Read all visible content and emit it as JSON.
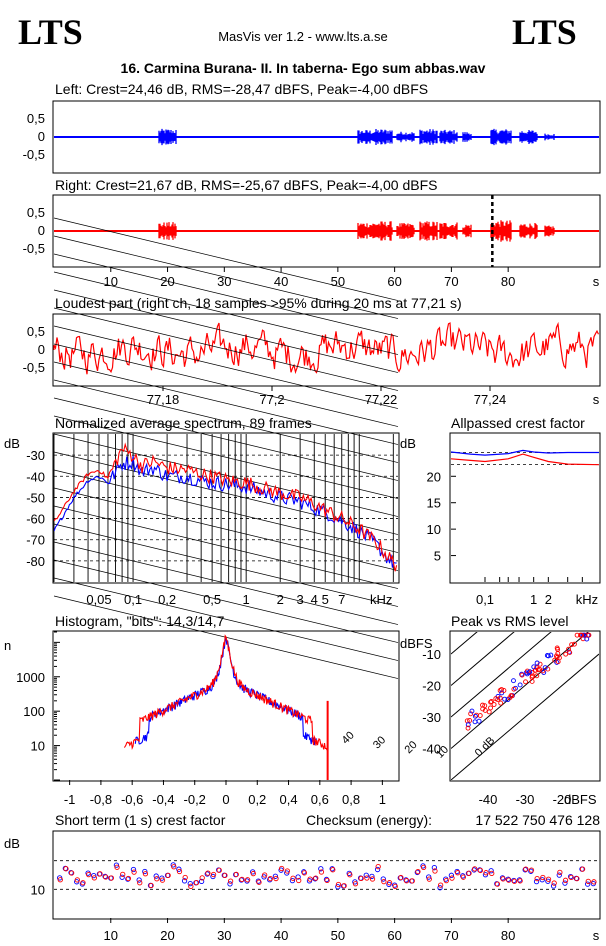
{
  "header": {
    "logo_left": "LTS",
    "logo_right": "LTS",
    "app_title": "MasVis ver 1.2 - www.lts.a.se",
    "file_title": "16. Carmina Burana- II. In taberna- Ego sum abbas.wav"
  },
  "colors": {
    "left": "#0000ff",
    "right": "#ff0000",
    "grid": "#000000"
  },
  "chart_data": [
    {
      "id": "left",
      "type": "line",
      "title": "Left: Crest=24,46 dB, RMS=-28,47 dBFS, Peak=-4,00 dBFS",
      "y_ticks": [
        "0,5",
        "0",
        "-0,5"
      ],
      "ylim": [
        -1,
        1
      ],
      "xlim": [
        0,
        96
      ],
      "bursts": [
        {
          "start": 18.5,
          "end": 21.5,
          "amp": 0.45
        },
        {
          "start": 53.5,
          "end": 56.5,
          "amp": 0.4
        },
        {
          "start": 56.8,
          "end": 59.5,
          "amp": 0.45
        },
        {
          "start": 60.5,
          "end": 63.5,
          "amp": 0.3
        },
        {
          "start": 64.5,
          "end": 67.5,
          "amp": 0.45
        },
        {
          "start": 68,
          "end": 71,
          "amp": 0.4
        },
        {
          "start": 72,
          "end": 73.5,
          "amp": 0.3
        },
        {
          "start": 77,
          "end": 80.5,
          "amp": 0.45
        },
        {
          "start": 82,
          "end": 85,
          "amp": 0.4
        },
        {
          "start": 86.5,
          "end": 88,
          "amp": 0.2
        }
      ]
    },
    {
      "id": "right",
      "type": "line",
      "title": "Right: Crest=21,67 dB, RMS=-25,67 dBFS, Peak=-4,00 dBFS",
      "y_ticks": [
        "0,5",
        "0",
        "-0,5"
      ],
      "ylim": [
        -1,
        1
      ],
      "xlim": [
        0,
        96
      ],
      "x_ticks": [
        "10",
        "20",
        "30",
        "40",
        "50",
        "60",
        "70",
        "80"
      ],
      "x_unit": "s",
      "marker_at": 77.21,
      "bursts": [
        {
          "start": 18.5,
          "end": 21.5,
          "amp": 0.5
        },
        {
          "start": 53.5,
          "end": 56.5,
          "amp": 0.5
        },
        {
          "start": 56.8,
          "end": 59.5,
          "amp": 0.55
        },
        {
          "start": 60.5,
          "end": 63.5,
          "amp": 0.45
        },
        {
          "start": 64.5,
          "end": 67.5,
          "amp": 0.55
        },
        {
          "start": 68,
          "end": 71,
          "amp": 0.5
        },
        {
          "start": 72,
          "end": 73.5,
          "amp": 0.4
        },
        {
          "start": 77,
          "end": 80.5,
          "amp": 0.6
        },
        {
          "start": 82,
          "end": 85,
          "amp": 0.45
        },
        {
          "start": 86.5,
          "end": 88,
          "amp": 0.3
        }
      ]
    },
    {
      "id": "loudest",
      "type": "line",
      "title": "Loudest part (right ch, 18 samples >95% during 20 ms at 77,21 s)",
      "y_ticks": [
        "0,5",
        "0",
        "-0,5"
      ],
      "ylim": [
        -1,
        1
      ],
      "xlim": [
        77.16,
        77.26
      ],
      "x_ticks": [
        "77,18",
        "77,2",
        "77,22",
        "77,24"
      ],
      "x_tick_values": [
        77.18,
        77.2,
        77.22,
        77.24
      ],
      "x_unit": "s"
    },
    {
      "id": "spectrum",
      "type": "line",
      "title": "Normalized average spectrum, 89 frames",
      "y_unit": "dB",
      "y_ticks": [
        "-30",
        "-40",
        "-50",
        "-60",
        "-70",
        "-80"
      ],
      "y_tick_values": [
        -30,
        -40,
        -50,
        -60,
        -70,
        -80
      ],
      "ylim": [
        -90,
        -20
      ],
      "x_ticks": [
        "0,05",
        "0,1",
        "0,2",
        "0,5",
        "1",
        "2",
        "3",
        "4",
        "5",
        "7"
      ],
      "x_tick_values": [
        0.05,
        0.1,
        0.2,
        0.5,
        1,
        2,
        3,
        4,
        5,
        7
      ],
      "x_unit": "kHz",
      "xlim_khz": [
        0.02,
        22
      ],
      "series": [
        {
          "id": "left",
          "points": [
            [
              0.02,
              -66
            ],
            [
              0.025,
              -57
            ],
            [
              0.03,
              -50
            ],
            [
              0.04,
              -42
            ],
            [
              0.05,
              -40
            ],
            [
              0.06,
              -43
            ],
            [
              0.08,
              -34
            ],
            [
              0.1,
              -33
            ],
            [
              0.12,
              -38
            ],
            [
              0.15,
              -36
            ],
            [
              0.2,
              -40
            ],
            [
              0.3,
              -40
            ],
            [
              0.4,
              -42
            ],
            [
              0.5,
              -43
            ],
            [
              0.7,
              -44
            ],
            [
              1,
              -45
            ],
            [
              1.5,
              -48
            ],
            [
              2,
              -50
            ],
            [
              3,
              -52
            ],
            [
              4,
              -55
            ],
            [
              5,
              -57
            ],
            [
              7,
              -61
            ],
            [
              10,
              -66
            ],
            [
              14,
              -72
            ],
            [
              18,
              -79
            ],
            [
              22,
              -83
            ]
          ]
        },
        {
          "id": "right",
          "points": [
            [
              0.02,
              -62
            ],
            [
              0.025,
              -54
            ],
            [
              0.03,
              -47
            ],
            [
              0.04,
              -39
            ],
            [
              0.05,
              -37
            ],
            [
              0.06,
              -41
            ],
            [
              0.08,
              -27
            ],
            [
              0.1,
              -30
            ],
            [
              0.12,
              -35
            ],
            [
              0.15,
              -33
            ],
            [
              0.2,
              -36
            ],
            [
              0.3,
              -37
            ],
            [
              0.4,
              -39
            ],
            [
              0.5,
              -40
            ],
            [
              0.7,
              -42
            ],
            [
              1,
              -43
            ],
            [
              1.5,
              -46
            ],
            [
              2,
              -48
            ],
            [
              3,
              -50
            ],
            [
              4,
              -53
            ],
            [
              5,
              -56
            ],
            [
              7,
              -60
            ],
            [
              10,
              -65
            ],
            [
              14,
              -71
            ],
            [
              18,
              -78
            ],
            [
              22,
              -83
            ]
          ]
        }
      ]
    },
    {
      "id": "allpass",
      "type": "line",
      "title": "Allpassed crest factor",
      "y_unit": "dB",
      "y_ticks": [
        "20",
        "15",
        "10",
        "5"
      ],
      "y_tick_values": [
        20,
        15,
        10,
        5
      ],
      "ylim": [
        0,
        28
      ],
      "x_ticks": [
        "0,1",
        "1",
        "2",
        "kHz"
      ],
      "x_tick_values": [
        0.1,
        1,
        2
      ],
      "xlim_khz": [
        0.02,
        22
      ],
      "reference_lines": [
        24.5,
        22.2
      ],
      "series": [
        {
          "id": "left",
          "points": [
            [
              0.02,
              24.6
            ],
            [
              0.05,
              24.2
            ],
            [
              0.1,
              24.0
            ],
            [
              0.3,
              24.3
            ],
            [
              0.6,
              24.9
            ],
            [
              1,
              24.6
            ],
            [
              2,
              24.4
            ],
            [
              5,
              24.5
            ],
            [
              22,
              24.5
            ]
          ]
        },
        {
          "id": "right",
          "points": [
            [
              0.02,
              23.3
            ],
            [
              0.05,
              23.0
            ],
            [
              0.1,
              22.8
            ],
            [
              0.3,
              23.3
            ],
            [
              0.6,
              24.2
            ],
            [
              1,
              23.6
            ],
            [
              2,
              22.8
            ],
            [
              5,
              22.3
            ],
            [
              22,
              22.2
            ]
          ]
        }
      ]
    },
    {
      "id": "histogram",
      "type": "line",
      "title": "Histogram, \"bits\": 14,3/14,7",
      "y_unit": "n",
      "y_ticks": [
        "1000",
        "100",
        "10"
      ],
      "y_tick_values": [
        1000,
        100,
        10
      ],
      "ylim_log": [
        1,
        20000
      ],
      "x_ticks": [
        "-1",
        "-0,8",
        "-0,6",
        "-0,4",
        "-0,2",
        "0",
        "0,2",
        "0,4",
        "0,6",
        "0,8",
        "1"
      ],
      "x_tick_values": [
        -1,
        -0.8,
        -0.6,
        -0.4,
        -0.2,
        0,
        0.2,
        0.4,
        0.6,
        0.8,
        1
      ],
      "xlim": [
        -1.1,
        1.1
      ],
      "left_extent": 0.58,
      "right_extent": 0.65
    },
    {
      "id": "peak_rms",
      "type": "scatter",
      "title": "Peak vs RMS level",
      "y_unit": "dBFS",
      "x_unit": "dBFS",
      "y_ticks": [
        "-10",
        "-20",
        "-30",
        "-40"
      ],
      "y_tick_values": [
        -10,
        -20,
        -30,
        -40
      ],
      "x_ticks": [
        "-40",
        "-30",
        "-20"
      ],
      "x_tick_values": [
        -40,
        -30,
        -20
      ],
      "xlim": [
        -50,
        -10
      ],
      "ylim": [
        -50,
        -3
      ],
      "diag_labels": [
        "40",
        "30",
        "20",
        "10",
        "0 dB"
      ],
      "diag_offsets": [
        40,
        30,
        20,
        10,
        0
      ]
    },
    {
      "id": "short_term",
      "type": "scatter",
      "title": "Short term (1 s) crest factor",
      "checksum_label": "Checksum (energy):",
      "checksum_value": "17 522 750 476 128",
      "y_unit": "dB",
      "y_ticks": [
        "10"
      ],
      "y_tick_values": [
        10
      ],
      "ylim": [
        0,
        30
      ],
      "reference_lines": [
        20,
        10
      ],
      "xlim": [
        0,
        96
      ],
      "x_ticks": [
        "10",
        "20",
        "30",
        "40",
        "50",
        "60",
        "70",
        "80"
      ],
      "x_tick_values": [
        10,
        20,
        30,
        40,
        50,
        60,
        70,
        80
      ],
      "x_unit": "s"
    }
  ]
}
